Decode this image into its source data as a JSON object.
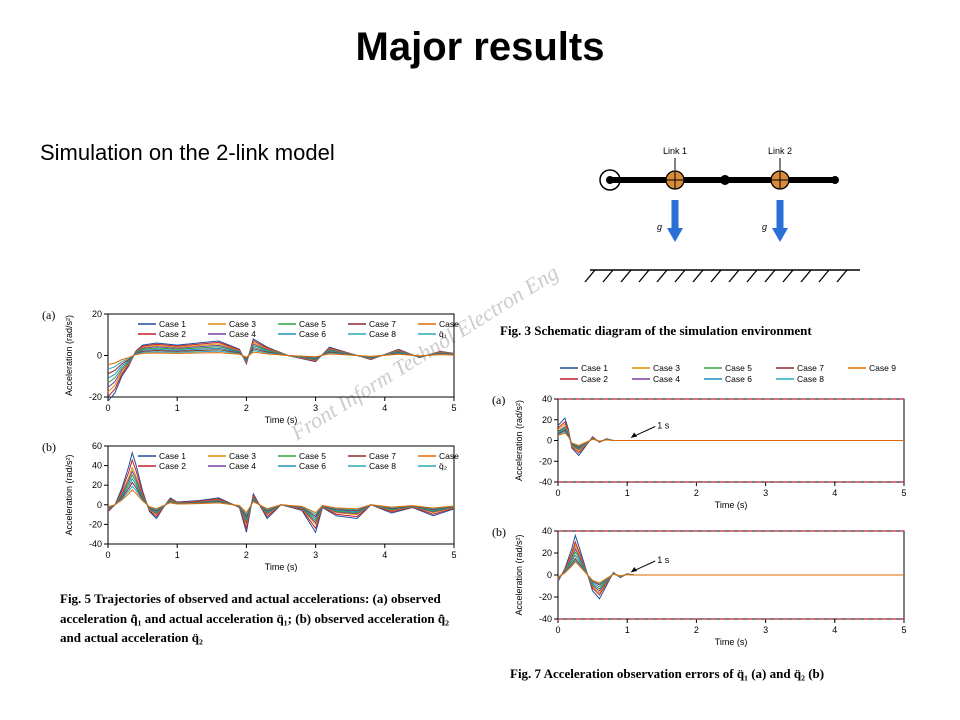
{
  "title": "Major results",
  "subtitle": "Simulation on the 2-link model",
  "watermark": "Front Inform Technol Electron Eng",
  "palette": {
    "case1": "#1f4e9c",
    "case2": "#c01f2d",
    "case3": "#e38b00",
    "case4": "#7a3fa0",
    "case5": "#2fa53a",
    "case6": "#1f8fbf",
    "case7": "#8a2a2a",
    "case8": "#2aa9b8",
    "case9": "#e06a00",
    "qhat": "#2aa9b8",
    "axis": "#000000",
    "dash": "#c01f2d"
  },
  "legend_items": [
    "Case 1",
    "Case 2",
    "Case 3",
    "Case 4",
    "Case 5",
    "Case 6",
    "Case 7",
    "Case 8",
    "Case 9"
  ],
  "fig5": {
    "xlabel": "Time (s)",
    "ylabel": "Acceleration (rad/s²)",
    "xlim": [
      0,
      5
    ],
    "xticks": [
      0,
      1,
      2,
      3,
      4,
      5
    ],
    "a": {
      "yticks": [
        -20,
        0,
        20
      ],
      "extra_legend": "q̈₁",
      "main_curve": [
        [
          0,
          -22
        ],
        [
          0.1,
          -18
        ],
        [
          0.2,
          -10
        ],
        [
          0.3,
          -5
        ],
        [
          0.4,
          2
        ],
        [
          0.5,
          5
        ],
        [
          0.7,
          6
        ],
        [
          1.0,
          5
        ],
        [
          1.3,
          6
        ],
        [
          1.6,
          7
        ],
        [
          1.9,
          3
        ],
        [
          2.0,
          -4
        ],
        [
          2.1,
          8
        ],
        [
          2.3,
          4
        ],
        [
          2.6,
          0
        ],
        [
          3.0,
          -3
        ],
        [
          3.2,
          4
        ],
        [
          3.5,
          1
        ],
        [
          3.8,
          -2
        ],
        [
          4.2,
          3
        ],
        [
          4.5,
          -1
        ],
        [
          4.8,
          2
        ],
        [
          5.0,
          1
        ]
      ],
      "family_scale": [
        1.0,
        0.9,
        0.8,
        0.7,
        0.6,
        0.5,
        0.4,
        0.3,
        0.2
      ]
    },
    "b": {
      "yticks": [
        -40,
        -20,
        0,
        20,
        40,
        60
      ],
      "extra_legend": "q̈₂",
      "main_curve": [
        [
          0,
          -5
        ],
        [
          0.1,
          0
        ],
        [
          0.2,
          12
        ],
        [
          0.3,
          28
        ],
        [
          0.35,
          38
        ],
        [
          0.4,
          30
        ],
        [
          0.5,
          10
        ],
        [
          0.6,
          -5
        ],
        [
          0.7,
          -10
        ],
        [
          0.8,
          -2
        ],
        [
          0.9,
          5
        ],
        [
          1.0,
          2
        ],
        [
          1.3,
          3
        ],
        [
          1.6,
          5
        ],
        [
          1.9,
          -2
        ],
        [
          2.0,
          -20
        ],
        [
          2.1,
          8
        ],
        [
          2.3,
          -10
        ],
        [
          2.5,
          0
        ],
        [
          2.8,
          -4
        ],
        [
          3.0,
          -20
        ],
        [
          3.1,
          -2
        ],
        [
          3.3,
          -8
        ],
        [
          3.6,
          -10
        ],
        [
          3.8,
          0
        ],
        [
          4.1,
          -6
        ],
        [
          4.4,
          -2
        ],
        [
          4.7,
          -8
        ],
        [
          5.0,
          -3
        ]
      ],
      "family_scale": [
        1.4,
        1.2,
        1.0,
        0.9,
        0.8,
        0.7,
        0.6,
        0.5,
        0.4
      ]
    },
    "caption": "Fig. 5  Trajectories of observed and actual accelerations: (a) observed acceleration q̂̈₁ and actual acceleration q̈₁; (b) observed acceleration q̂̈₂ and actual acceleration q̈₂"
  },
  "fig3": {
    "labels": {
      "link1": "Link 1",
      "link2": "Link 2",
      "g": "g"
    },
    "caption": "Fig. 3   Schematic diagram of the simulation environment"
  },
  "fig7": {
    "xlabel": "Time (s)",
    "ylabel": "Acceleration (rad/s²)",
    "xlim": [
      0,
      5
    ],
    "xticks": [
      0,
      1,
      2,
      3,
      4,
      5
    ],
    "annot": "1 s",
    "a": {
      "yticks": [
        -40,
        -20,
        0,
        20,
        40
      ],
      "dash_at": [
        40,
        -40
      ],
      "main_curve": [
        [
          0,
          8
        ],
        [
          0.1,
          12
        ],
        [
          0.15,
          6
        ],
        [
          0.2,
          -4
        ],
        [
          0.3,
          -8
        ],
        [
          0.4,
          -3
        ],
        [
          0.5,
          2
        ],
        [
          0.6,
          -1
        ],
        [
          0.7,
          1
        ],
        [
          0.8,
          0
        ],
        [
          1.0,
          0
        ],
        [
          5.0,
          0
        ]
      ],
      "family_scale": [
        1.8,
        1.5,
        1.3,
        1.1,
        1.0,
        0.9,
        0.8,
        0.7,
        0.6
      ]
    },
    "b": {
      "yticks": [
        -40,
        -20,
        0,
        20,
        40
      ],
      "dash_at": [
        40,
        -40
      ],
      "main_curve": [
        [
          0,
          -5
        ],
        [
          0.1,
          5
        ],
        [
          0.2,
          20
        ],
        [
          0.25,
          30
        ],
        [
          0.3,
          22
        ],
        [
          0.4,
          5
        ],
        [
          0.5,
          -12
        ],
        [
          0.6,
          -18
        ],
        [
          0.7,
          -8
        ],
        [
          0.8,
          2
        ],
        [
          0.9,
          -2
        ],
        [
          1.0,
          1
        ],
        [
          1.1,
          0
        ],
        [
          5.0,
          0
        ]
      ],
      "family_scale": [
        1.2,
        1.0,
        0.9,
        0.8,
        0.7,
        0.6,
        0.5,
        0.45,
        0.4
      ]
    },
    "caption": "Fig. 7  Acceleration observation errors of q̈₁ (a) and q̈₂ (b)"
  }
}
